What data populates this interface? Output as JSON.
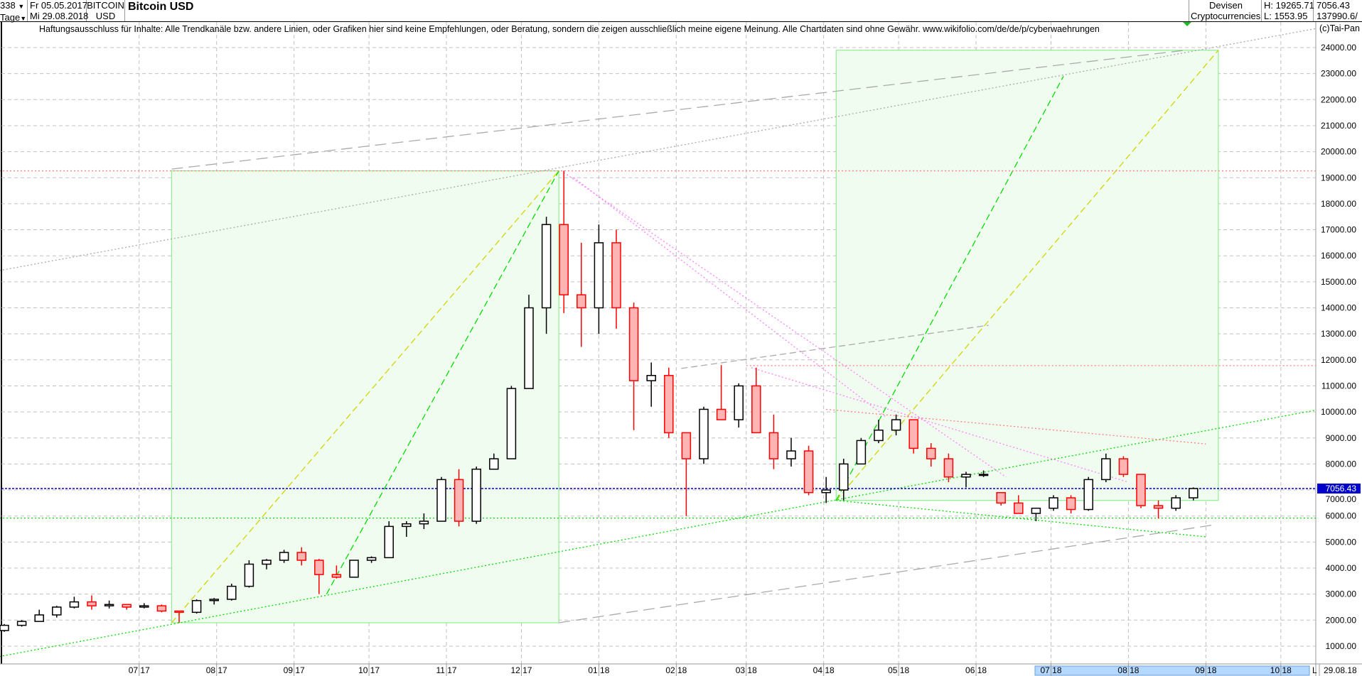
{
  "header": {
    "bars_count": "338",
    "period": "Tage",
    "start_date": "Fr 05.05.2017",
    "end_date": "Mi 29.08.2018",
    "symbol": "BITCOIN",
    "currency": "USD",
    "title": "Bitcoin USD",
    "market": "Devisen",
    "category": "Cryptocurrencies",
    "high": "H: 19265.71",
    "low": "L: 1553.95",
    "last": "7056.43",
    "volume": "137990.6/",
    "copyright": "(c)Tai-Pan",
    "disclaimer": "Haftungsausschluss für Inhalte: Alle Trendkanäle bzw. andere Linien, oder Grafiken hier sind keine Empfehlungen, oder Beratung, sondern die zeigen ausschließlich meine eigene Meinung. Alle Chartdaten sind ohne Gewähr.  www.wikifolio.com/de/de/p/cyberwaehrungen"
  },
  "footer": {
    "scroll_marker": "L",
    "current_date": "29.08.18"
  },
  "colors": {
    "up_body": "#ffffff",
    "up_border": "#000000",
    "down_body": "#ffb4b4",
    "down_border": "#ff0000",
    "last_price": "#0000cc",
    "box_fill": "#f0fcf0",
    "box_border": "#90ee90",
    "grid": "#c0c0c0"
  },
  "chart_data": {
    "type": "candlestick",
    "title": "Bitcoin USD",
    "ylim": [
      0,
      25000
    ],
    "grid": true,
    "last_price": 7056.43,
    "last_price_label": "7056.43",
    "yticks": [
      "1000.00",
      "2000.00",
      "3000.00",
      "4000.00",
      "5000.00",
      "6000.00",
      "7000.00",
      "8000.00",
      "9000.00",
      "10000.00",
      "11000.00",
      "12000.00",
      "13000.00",
      "14000.00",
      "15000.00",
      "16000.00",
      "17000.00",
      "18000.00",
      "19000.00",
      "20000.00",
      "21000.00",
      "22000.00",
      "23000.00",
      "24000.00"
    ],
    "xticks": [
      {
        "date": "2017-07-01",
        "label": "07 17"
      },
      {
        "date": "2017-08-01",
        "label": "08 17"
      },
      {
        "date": "2017-09-01",
        "label": "09 17"
      },
      {
        "date": "2017-10-01",
        "label": "10 17"
      },
      {
        "date": "2017-11-01",
        "label": "11 17"
      },
      {
        "date": "2017-12-01",
        "label": "12 17"
      },
      {
        "date": "2018-01-01",
        "label": "01 18"
      },
      {
        "date": "2018-02-01",
        "label": "02 18"
      },
      {
        "date": "2018-03-01",
        "label": "03 18"
      },
      {
        "date": "2018-04-01",
        "label": "04 18"
      },
      {
        "date": "2018-05-01",
        "label": "05 18"
      },
      {
        "date": "2018-06-01",
        "label": "06 18"
      },
      {
        "date": "2018-07-01",
        "label": "07 18"
      },
      {
        "date": "2018-08-01",
        "label": "08 18"
      },
      {
        "date": "2018-09-01",
        "label": "09 18"
      },
      {
        "date": "2018-10-01",
        "label": "10 18"
      }
    ],
    "start": "2017-05-08",
    "ohlc": [
      [
        1600,
        1850,
        1550,
        1800
      ],
      [
        1800,
        2000,
        1750,
        1950
      ],
      [
        1950,
        2400,
        1950,
        2200
      ],
      [
        2200,
        2550,
        2100,
        2500
      ],
      [
        2500,
        2900,
        2450,
        2700
      ],
      [
        2700,
        2950,
        2400,
        2550
      ],
      [
        2550,
        2750,
        2450,
        2600
      ],
      [
        2600,
        2600,
        2400,
        2500
      ],
      [
        2500,
        2650,
        2450,
        2550
      ],
      [
        2550,
        2600,
        2300,
        2350
      ],
      [
        2350,
        2350,
        1900,
        2300
      ],
      [
        2300,
        2800,
        2250,
        2750
      ],
      [
        2750,
        2850,
        2600,
        2800
      ],
      [
        2800,
        3400,
        2750,
        3300
      ],
      [
        3300,
        4300,
        3250,
        4150
      ],
      [
        4150,
        4350,
        3950,
        4300
      ],
      [
        4300,
        4700,
        4200,
        4600
      ],
      [
        4600,
        4800,
        4100,
        4300
      ],
      [
        4300,
        4350,
        3000,
        3750
      ],
      [
        3750,
        4100,
        3600,
        3650
      ],
      [
        3650,
        4300,
        3650,
        4300
      ],
      [
        4300,
        4450,
        4200,
        4400
      ],
      [
        4400,
        5800,
        4400,
        5600
      ],
      [
        5600,
        5800,
        5200,
        5700
      ],
      [
        5700,
        6100,
        5500,
        5800
      ],
      [
        5800,
        7500,
        5800,
        7400
      ],
      [
        7400,
        7800,
        5600,
        5800
      ],
      [
        5800,
        7900,
        5700,
        7800
      ],
      [
        7800,
        8400,
        7800,
        8200
      ],
      [
        8200,
        11000,
        8200,
        10900
      ],
      [
        10900,
        14500,
        10900,
        14000
      ],
      [
        14000,
        17500,
        13000,
        17200
      ],
      [
        17200,
        19265,
        13800,
        14500
      ],
      [
        14500,
        16500,
        12500,
        14000
      ],
      [
        14000,
        17200,
        13000,
        16500
      ],
      [
        16500,
        17000,
        13200,
        14000
      ],
      [
        14000,
        14200,
        9300,
        11200
      ],
      [
        11200,
        11900,
        10200,
        11400
      ],
      [
        11400,
        11700,
        9000,
        9200
      ],
      [
        9200,
        9200,
        6000,
        8200
      ],
      [
        8200,
        10200,
        8000,
        10100
      ],
      [
        10100,
        11800,
        9800,
        9700
      ],
      [
        9700,
        11100,
        9400,
        11000
      ],
      [
        11000,
        11700,
        9200,
        9200
      ],
      [
        9200,
        9900,
        7800,
        8200
      ],
      [
        8200,
        9000,
        7900,
        8500
      ],
      [
        8500,
        8700,
        6800,
        6900
      ],
      [
        6900,
        7500,
        6500,
        7000
      ],
      [
        7000,
        8200,
        6600,
        8000
      ],
      [
        8000,
        9000,
        8000,
        8900
      ],
      [
        8900,
        9700,
        8800,
        9300
      ],
      [
        9300,
        9900,
        9100,
        9700
      ],
      [
        9700,
        9700,
        8400,
        8600
      ],
      [
        8600,
        8800,
        7900,
        8200
      ],
      [
        8200,
        8400,
        7300,
        7500
      ],
      [
        7500,
        7700,
        7100,
        7600
      ],
      [
        7600,
        7750,
        7500,
        7600
      ],
      [
        6900,
        6900,
        6400,
        6500
      ],
      [
        6500,
        6800,
        6100,
        6100
      ],
      [
        6100,
        6300,
        5800,
        6300
      ],
      [
        6300,
        6800,
        6200,
        6700
      ],
      [
        6700,
        6800,
        6100,
        6250
      ],
      [
        6250,
        7500,
        6200,
        7400
      ],
      [
        7400,
        8400,
        7300,
        8200
      ],
      [
        8200,
        8300,
        7500,
        7600
      ],
      [
        7600,
        7600,
        6300,
        6400
      ],
      [
        6400,
        6600,
        5900,
        6300
      ],
      [
        6300,
        6800,
        6200,
        6700
      ],
      [
        6700,
        7100,
        6600,
        7056.43
      ]
    ],
    "drawings": {
      "boxes": [
        {
          "from": [
            "2017-07-14",
            1900
          ],
          "to": [
            "2017-12-16",
            19265
          ]
        },
        {
          "from": [
            "2018-04-06",
            6600
          ],
          "to": [
            "2018-09-06",
            23900
          ]
        }
      ],
      "lines": [
        {
          "from": [
            "2017-07-14",
            1900
          ],
          "to": [
            "2017-12-16",
            19265
          ],
          "color": "#d4d400",
          "style": "dash"
        },
        {
          "from": [
            "2017-09-14",
            3000
          ],
          "to": [
            "2017-12-16",
            19265
          ],
          "color": "#00dd00",
          "style": "dash"
        },
        {
          "from": [
            "2018-04-06",
            6600
          ],
          "to": [
            "2018-09-06",
            23900
          ],
          "color": "#d4d400",
          "style": "dash"
        },
        {
          "from": [
            "2018-04-06",
            6600
          ],
          "to": [
            "2018-07-06",
            22900
          ],
          "color": "#00dd00",
          "style": "dash"
        },
        {
          "from": [
            "2017-05-06",
            15430
          ],
          "to": [
            "2018-10-15",
            24730
          ],
          "color": "#aaaaaa",
          "style": "dot"
        },
        {
          "from": [
            "2017-07-14",
            19330
          ],
          "to": [
            "2018-08-24",
            23900
          ],
          "color": "#aaaaaa",
          "style": "longdash"
        },
        {
          "from": [
            "2017-12-16",
            1900
          ],
          "to": [
            "2018-09-05",
            5670
          ],
          "color": "#aaaaaa",
          "style": "longdash"
        },
        {
          "from": [
            "2018-02-03",
            11670
          ],
          "to": [
            "2018-06-06",
            13330
          ],
          "color": "#aaaaaa",
          "style": "dash"
        },
        {
          "from": [
            "2017-05-06",
            600
          ],
          "to": [
            "2018-10-15",
            10070
          ],
          "color": "#00dd00",
          "style": "dot"
        },
        {
          "from": [
            "2018-04-06",
            6600
          ],
          "to": [
            "2018-09-01",
            5200
          ],
          "color": "#00dd00",
          "style": "dot"
        },
        {
          "from": [
            "2017-05-06",
            19265
          ],
          "to": [
            "2018-10-15",
            19265
          ],
          "color": "#ff7f7f",
          "style": "dot"
        },
        {
          "from": [
            "2018-03-01",
            11780
          ],
          "to": [
            "2018-10-15",
            11780
          ],
          "color": "#ff7f7f",
          "style": "dot"
        },
        {
          "from": [
            "2018-04-02",
            10100
          ],
          "to": [
            "2018-09-01",
            8770
          ],
          "color": "#ff7f7f",
          "style": "dot"
        },
        {
          "from": [
            "2017-12-18",
            19200
          ],
          "to": [
            "2018-06-13",
            7500
          ],
          "color": "#ff80ff",
          "style": "dot"
        },
        {
          "from": [
            "2017-12-22",
            19000
          ],
          "to": [
            "2018-04-26",
            9800
          ],
          "color": "#ff80ff",
          "style": "dot"
        },
        {
          "from": [
            "2018-03-03",
            11700
          ],
          "to": [
            "2018-08-01",
            7300
          ],
          "color": "#ff80ff",
          "style": "dot"
        },
        {
          "from": [
            "2017-05-06",
            5920
          ],
          "to": [
            "2018-10-15",
            5920
          ],
          "color": "#00dd00",
          "style": "dot"
        }
      ]
    }
  }
}
